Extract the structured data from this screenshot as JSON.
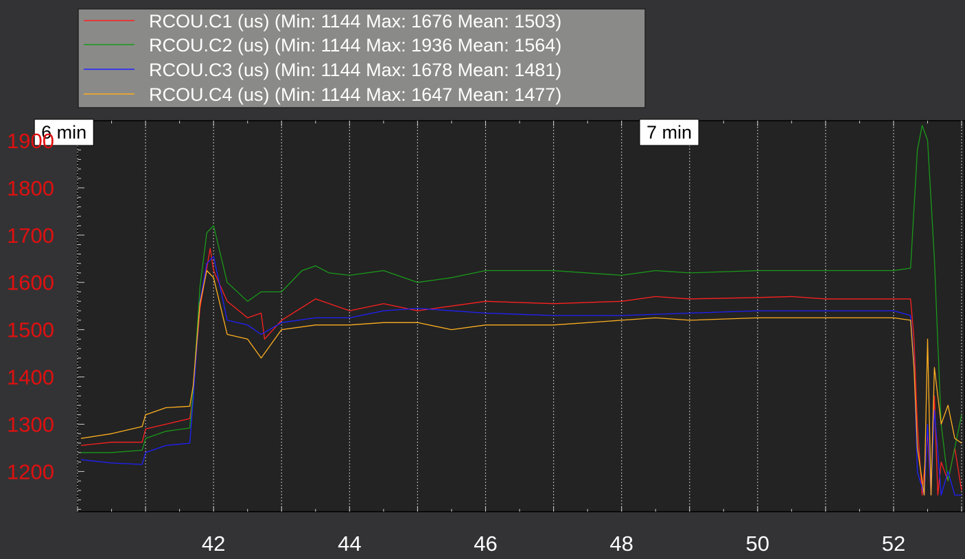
{
  "chart_data": {
    "type": "line",
    "x_ticks": [
      42,
      44,
      46,
      48,
      50,
      52
    ],
    "y_ticks": [
      1200,
      1300,
      1400,
      1500,
      1600,
      1700,
      1800,
      1900
    ],
    "xlim": [
      40.0,
      53.05
    ],
    "ylim": [
      1115,
      1942
    ],
    "grid": true,
    "legend_position": "top-left",
    "time_markers": [
      {
        "label": "7 min",
        "x": 48.7
      },
      {
        "label": "6 min",
        "x": 39.8
      }
    ],
    "series": [
      {
        "name": "RCOU.C1 (us)",
        "legend_label": "RCOU.C1 (us) (Min: 1144 Max: 1676 Mean: 1503)",
        "color": "#ff2020",
        "x": [
          40.05,
          40.5,
          40.95,
          41.0,
          41.3,
          41.65,
          41.7,
          41.8,
          41.9,
          41.95,
          42.0,
          42.2,
          42.5,
          42.7,
          42.75,
          43.0,
          43.5,
          44.0,
          44.5,
          45.0,
          45.5,
          46.0,
          47.0,
          48.0,
          48.5,
          49.0,
          50.0,
          50.5,
          51.0,
          52.0,
          52.25,
          52.3,
          52.35,
          52.42,
          52.5,
          52.55,
          52.6,
          52.65,
          52.7,
          52.8,
          52.9,
          53.0
        ],
        "y": [
          1255,
          1262,
          1262,
          1290,
          1300,
          1312,
          1360,
          1545,
          1630,
          1672,
          1625,
          1560,
          1525,
          1535,
          1480,
          1520,
          1565,
          1540,
          1555,
          1540,
          1550,
          1560,
          1555,
          1560,
          1570,
          1565,
          1568,
          1570,
          1565,
          1565,
          1565,
          1480,
          1300,
          1150,
          1280,
          1150,
          1360,
          1150,
          1220,
          1180,
          1250,
          1160
        ]
      },
      {
        "name": "RCOU.C2 (us)",
        "legend_label": "RCOU.C2 (us) (Min: 1144 Max: 1936 Mean: 1564)",
        "color": "#1a9a1a",
        "x": [
          40.05,
          40.5,
          40.95,
          41.0,
          41.3,
          41.65,
          41.7,
          41.8,
          41.9,
          42.0,
          42.2,
          42.5,
          42.7,
          43.0,
          43.3,
          43.5,
          43.7,
          44.0,
          44.5,
          45.0,
          45.5,
          46.0,
          47.0,
          48.0,
          48.5,
          49.0,
          50.0,
          51.0,
          52.0,
          52.25,
          52.35,
          52.42,
          52.5,
          52.6,
          52.7,
          52.8,
          52.9,
          53.0
        ],
        "y": [
          1240,
          1240,
          1245,
          1270,
          1285,
          1292,
          1370,
          1590,
          1705,
          1720,
          1600,
          1560,
          1580,
          1580,
          1625,
          1635,
          1620,
          1615,
          1625,
          1600,
          1610,
          1625,
          1625,
          1615,
          1625,
          1620,
          1625,
          1625,
          1625,
          1630,
          1880,
          1932,
          1900,
          1650,
          1300,
          1180,
          1250,
          1320
        ]
      },
      {
        "name": "RCOU.C3 (us)",
        "legend_label": "RCOU.C3 (us) (Min: 1144 Max: 1678 Mean: 1481)",
        "color": "#2020ff",
        "x": [
          40.05,
          40.5,
          40.95,
          41.0,
          41.3,
          41.65,
          41.7,
          41.8,
          41.9,
          42.0,
          42.2,
          42.5,
          42.7,
          43.0,
          43.5,
          44.0,
          44.5,
          45.0,
          46.0,
          47.0,
          48.0,
          49.0,
          50.0,
          51.0,
          52.0,
          52.25,
          52.3,
          52.35,
          52.45,
          52.5,
          52.55,
          52.6,
          52.7,
          52.8,
          52.9,
          53.0
        ],
        "y": [
          1225,
          1218,
          1215,
          1240,
          1255,
          1260,
          1350,
          1560,
          1640,
          1655,
          1520,
          1510,
          1490,
          1515,
          1525,
          1525,
          1540,
          1545,
          1535,
          1530,
          1530,
          1535,
          1540,
          1540,
          1540,
          1530,
          1430,
          1200,
          1150,
          1300,
          1150,
          1330,
          1150,
          1200,
          1150,
          1150
        ]
      },
      {
        "name": "RCOU.C4 (us)",
        "legend_label": "RCOU.C4 (us) (Min: 1144 Max: 1647 Mean: 1477)",
        "color": "#ffb020",
        "x": [
          40.05,
          40.5,
          40.95,
          41.0,
          41.3,
          41.65,
          41.7,
          41.8,
          41.9,
          42.0,
          42.2,
          42.5,
          42.7,
          43.0,
          43.5,
          44.0,
          44.5,
          45.0,
          45.5,
          46.0,
          47.0,
          48.0,
          48.5,
          49.0,
          50.0,
          51.0,
          52.0,
          52.25,
          52.3,
          52.35,
          52.45,
          52.5,
          52.55,
          52.6,
          52.7,
          52.8,
          52.9,
          53.0
        ],
        "y": [
          1270,
          1280,
          1295,
          1320,
          1335,
          1338,
          1380,
          1555,
          1625,
          1610,
          1490,
          1480,
          1440,
          1500,
          1510,
          1510,
          1515,
          1515,
          1500,
          1510,
          1510,
          1520,
          1525,
          1520,
          1525,
          1525,
          1525,
          1520,
          1420,
          1250,
          1150,
          1480,
          1150,
          1420,
          1300,
          1340,
          1270,
          1260
        ]
      }
    ]
  }
}
